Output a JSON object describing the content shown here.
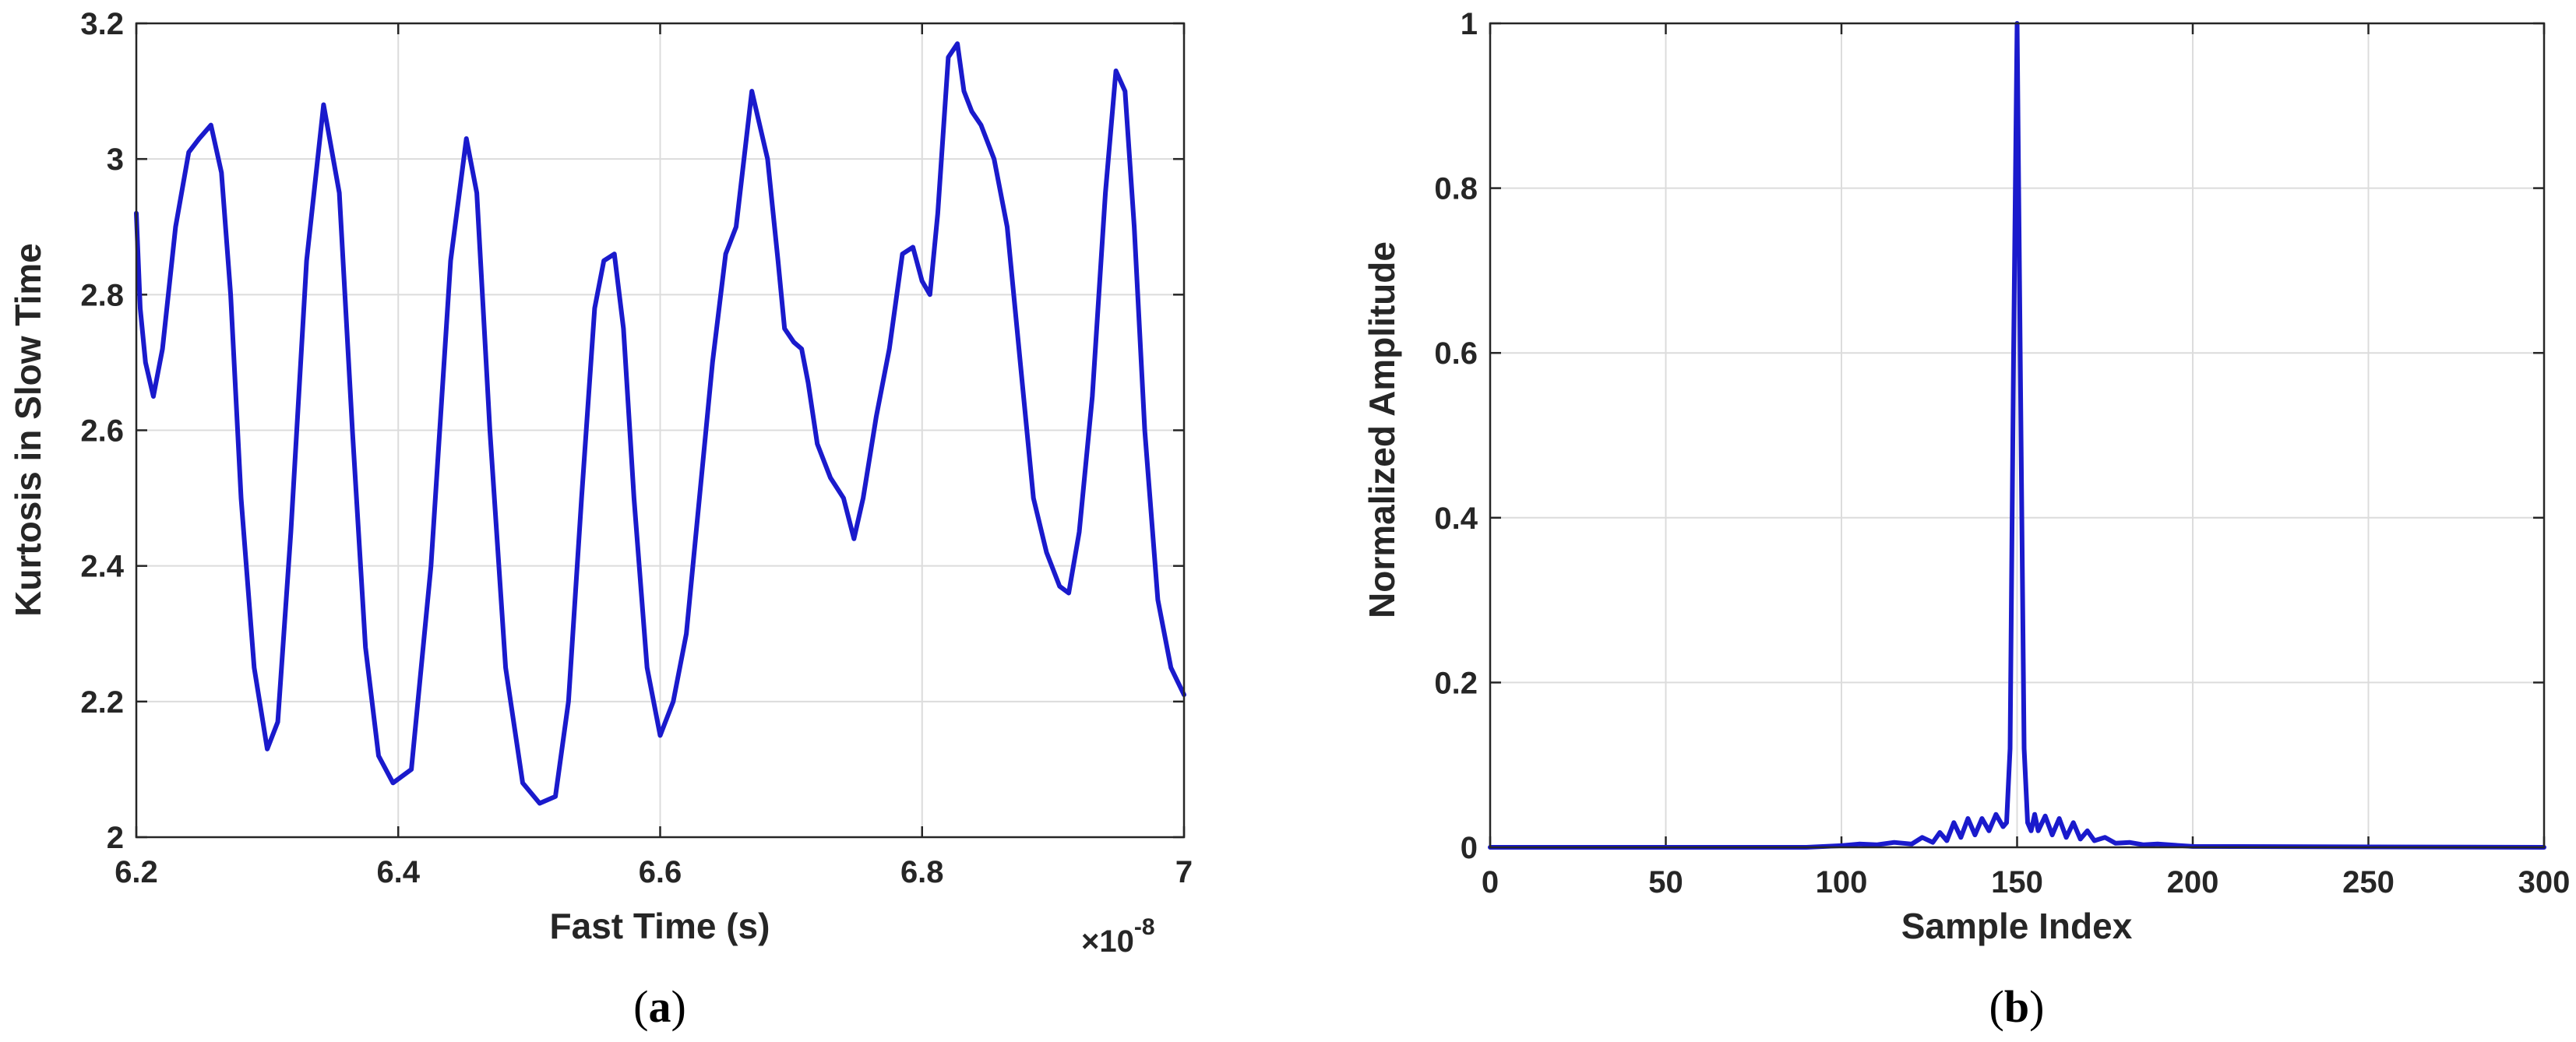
{
  "chart_data": [
    {
      "type": "line",
      "title": "",
      "xlabel": "Fast Time (s)",
      "ylabel": "Kurtosis in Slow Time",
      "x_exponent_base": "×10",
      "x_exponent_power": "-8",
      "xlim": [
        6.2,
        7.0
      ],
      "ylim": [
        2.0,
        3.2
      ],
      "xticks": [
        "6.2",
        "6.4",
        "6.6",
        "6.8",
        "7"
      ],
      "yticks": [
        "2",
        "2.2",
        "2.4",
        "2.6",
        "2.8",
        "3",
        "3.2"
      ],
      "grid": true,
      "color": "#1a1acc",
      "caption_open": "(",
      "caption_letter": "a",
      "caption_close": ")",
      "series": [
        {
          "x": [
            6.2,
            6.203,
            6.207,
            6.213,
            6.22,
            6.23,
            6.24,
            6.248,
            6.257,
            6.265,
            6.272,
            6.28,
            6.29,
            6.3,
            6.308,
            6.318,
            6.33,
            6.343,
            6.355,
            6.365,
            6.375,
            6.385,
            6.396,
            6.41,
            6.425,
            6.44,
            6.452,
            6.46,
            6.47,
            6.482,
            6.495,
            6.508,
            6.52,
            6.53,
            6.54,
            6.55,
            6.557,
            6.565,
            6.572,
            6.58,
            6.59,
            6.6,
            6.61,
            6.62,
            6.63,
            6.64,
            6.65,
            6.658,
            6.67,
            6.682,
            6.69,
            6.695,
            6.702,
            6.708,
            6.713,
            6.72,
            6.73,
            6.74,
            6.748,
            6.755,
            6.765,
            6.775,
            6.785,
            6.793,
            6.8,
            6.806,
            6.812,
            6.82,
            6.827,
            6.832,
            6.838,
            6.845,
            6.855,
            6.865,
            6.875,
            6.885,
            6.895,
            6.905,
            6.912,
            6.92,
            6.93,
            6.94,
            6.948,
            6.955,
            6.962,
            6.97,
            6.98,
            6.99,
            7.0
          ],
          "y": [
            2.92,
            2.78,
            2.7,
            2.65,
            2.72,
            2.9,
            3.01,
            3.03,
            3.05,
            2.98,
            2.8,
            2.5,
            2.25,
            2.13,
            2.17,
            2.45,
            2.85,
            3.08,
            2.95,
            2.6,
            2.28,
            2.12,
            2.08,
            2.1,
            2.4,
            2.85,
            3.03,
            2.95,
            2.6,
            2.25,
            2.08,
            2.05,
            2.06,
            2.2,
            2.5,
            2.78,
            2.85,
            2.86,
            2.75,
            2.5,
            2.25,
            2.15,
            2.2,
            2.3,
            2.5,
            2.7,
            2.86,
            2.9,
            3.1,
            3.0,
            2.85,
            2.75,
            2.73,
            2.72,
            2.67,
            2.58,
            2.53,
            2.5,
            2.44,
            2.5,
            2.62,
            2.72,
            2.86,
            2.87,
            2.82,
            2.8,
            2.92,
            3.15,
            3.17,
            3.1,
            3.07,
            3.05,
            3.0,
            2.9,
            2.7,
            2.5,
            2.42,
            2.37,
            2.36,
            2.45,
            2.65,
            2.95,
            3.13,
            3.1,
            2.9,
            2.6,
            2.35,
            2.25,
            2.21
          ]
        }
      ]
    },
    {
      "type": "line",
      "title": "",
      "xlabel": "Sample Index",
      "ylabel": "Normalized Amplitude",
      "xlim": [
        0,
        300
      ],
      "ylim": [
        0,
        1
      ],
      "xticks": [
        "0",
        "50",
        "100",
        "150",
        "200",
        "250",
        "300"
      ],
      "yticks": [
        "0",
        "0.2",
        "0.4",
        "0.6",
        "0.8",
        "1"
      ],
      "grid": true,
      "color": "#1a1acc",
      "caption_open": "(",
      "caption_letter": "b",
      "caption_close": ")",
      "series": [
        {
          "x": [
            0,
            90,
            100,
            105,
            110,
            115,
            120,
            123,
            126,
            128,
            130,
            132,
            134,
            136,
            138,
            140,
            142,
            144,
            146,
            147,
            148,
            149,
            150,
            151,
            152,
            153,
            154,
            155,
            156,
            158,
            160,
            162,
            164,
            166,
            168,
            170,
            172,
            175,
            178,
            182,
            186,
            190,
            200,
            300
          ],
          "y": [
            0,
            0,
            0.002,
            0.004,
            0.003,
            0.006,
            0.004,
            0.012,
            0.006,
            0.018,
            0.008,
            0.03,
            0.012,
            0.035,
            0.015,
            0.035,
            0.02,
            0.04,
            0.025,
            0.03,
            0.12,
            0.6,
            1.0,
            0.55,
            0.12,
            0.03,
            0.02,
            0.04,
            0.02,
            0.038,
            0.015,
            0.035,
            0.012,
            0.03,
            0.01,
            0.02,
            0.008,
            0.012,
            0.005,
            0.006,
            0.003,
            0.004,
            0.001,
            0
          ]
        }
      ]
    }
  ]
}
